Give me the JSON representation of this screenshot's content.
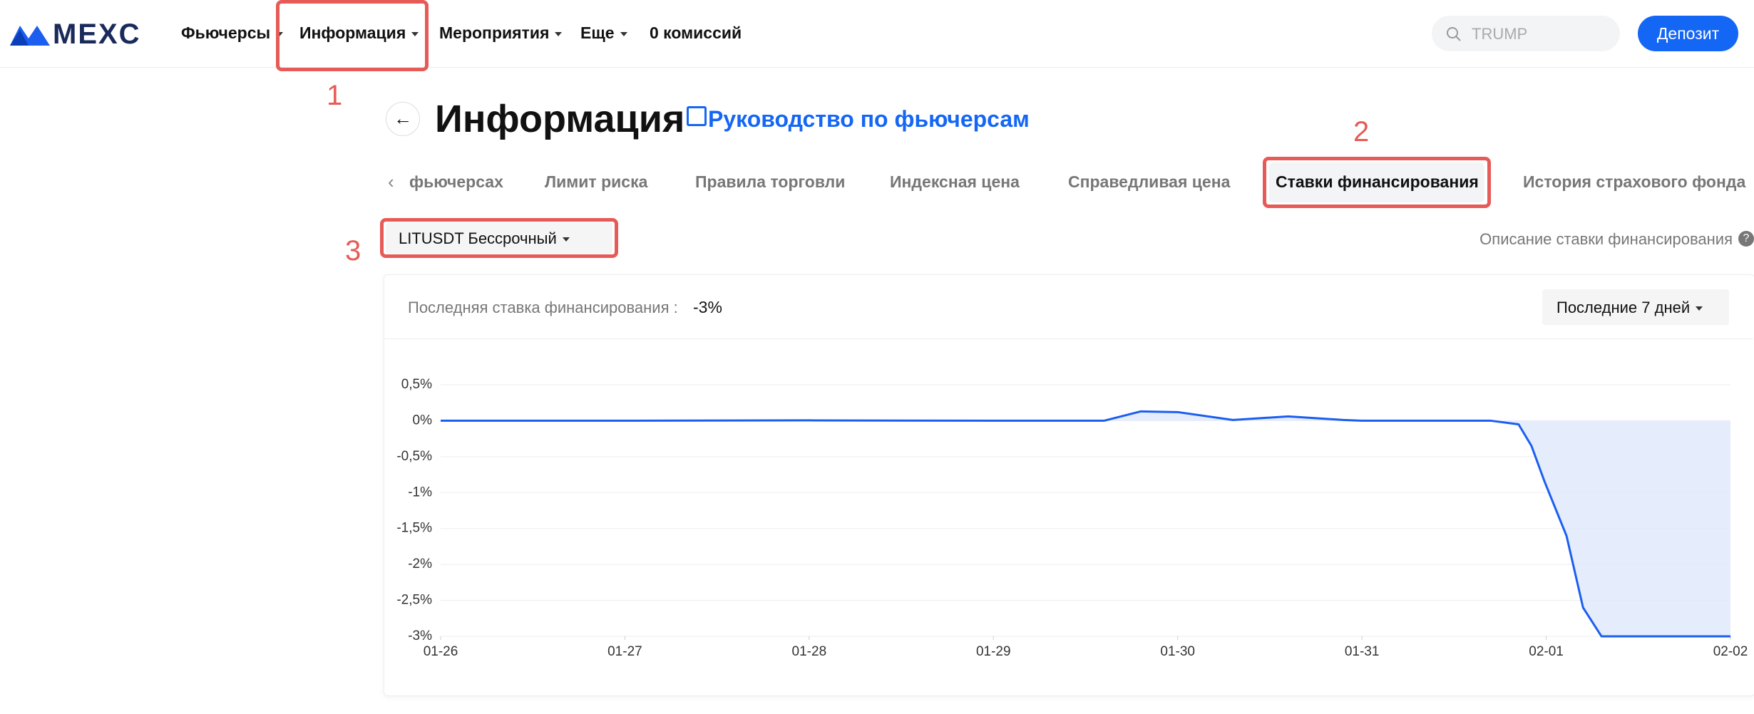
{
  "nav": {
    "logo": "MEXC",
    "items": [
      "Фьючерсы",
      "Информация",
      "Мероприятия",
      "Еще",
      "0 комиссий"
    ],
    "search_placeholder": "TRUMP",
    "deposit": "Депозит"
  },
  "header": {
    "title": "Информация",
    "guide_link": "Руководство по фьючерсам"
  },
  "tabs": [
    "фьючерсах",
    "Лимит риска",
    "Правила торговли",
    "Индексная цена",
    "Справедливая цена",
    "Ставки финансирования",
    "История страхового фонда"
  ],
  "selector": {
    "contract": "LITUSDT Бессрочный",
    "description": "Описание ставки финансирования"
  },
  "annotations": [
    "1",
    "2",
    "3"
  ],
  "panel": {
    "latest_label": "Последняя ставка финансирования :",
    "latest_value": "-3%",
    "period": "Последние 7 дней"
  },
  "chart_data": {
    "type": "line",
    "x": [
      0,
      1,
      2,
      3,
      3.6,
      3.8,
      4,
      4.3,
      4.6,
      4.9,
      5,
      5.7,
      5.85,
      5.92,
      5.99,
      6.11,
      6.2,
      6.3,
      7
    ],
    "xlim": [
      0,
      7
    ],
    "xticks": [
      {
        "value": 0,
        "label": "01-26"
      },
      {
        "value": 1,
        "label": "01-27"
      },
      {
        "value": 2,
        "label": "01-28"
      },
      {
        "value": 3,
        "label": "01-29"
      },
      {
        "value": 4,
        "label": "01-30"
      },
      {
        "value": 5,
        "label": "01-31"
      },
      {
        "value": 6,
        "label": "02-01"
      },
      {
        "value": 7,
        "label": "02-02"
      }
    ],
    "ylim": [
      -3,
      0.5
    ],
    "yticks": [
      {
        "value": 0.5,
        "label": "0,5%"
      },
      {
        "value": 0,
        "label": "0%"
      },
      {
        "value": -0.5,
        "label": "-0,5%"
      },
      {
        "value": -1,
        "label": "-1%"
      },
      {
        "value": -1.5,
        "label": "-1,5%"
      },
      {
        "value": -2,
        "label": "-2%"
      },
      {
        "value": -2.5,
        "label": "-2,5%"
      },
      {
        "value": -3,
        "label": "-3%"
      }
    ],
    "series": [
      {
        "color": "#1b5ef0",
        "values": [
          0,
          0,
          0.005,
          0,
          0,
          0.13,
          0.12,
          0.01,
          0.06,
          0.01,
          0,
          0,
          -0.05,
          -0.35,
          -0.84,
          -1.6,
          -2.6,
          -3,
          -3
        ]
      }
    ],
    "area_color": "#dfe8fb",
    "grid": true
  }
}
